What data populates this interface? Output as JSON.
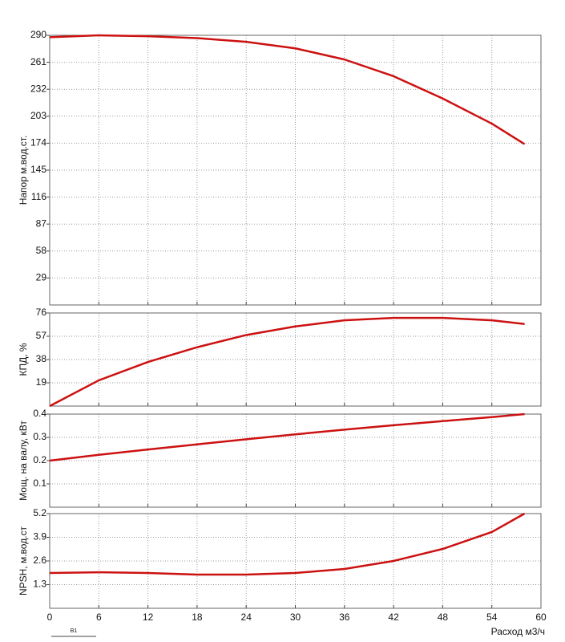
{
  "chart_data": [
    {
      "type": "line",
      "y_label": "Напор м.вод.ст.",
      "x": [
        0,
        6,
        12,
        18,
        24,
        30,
        36,
        42,
        48,
        54,
        58
      ],
      "series": [
        {
          "color": "#cc1111",
          "values": [
            288,
            290,
            289,
            287,
            283,
            276,
            264,
            246,
            222,
            195,
            173
          ]
        }
      ],
      "xlim": [
        0,
        60
      ],
      "xticks": [
        0,
        6,
        12,
        18,
        24,
        30,
        36,
        42,
        48,
        54,
        60
      ],
      "ylim": [
        0,
        290
      ],
      "yticks": [
        29,
        58,
        87,
        116,
        145,
        174,
        203,
        232,
        261,
        290
      ],
      "grid": true
    },
    {
      "type": "line",
      "y_label": "КПД, %",
      "x": [
        0,
        6,
        12,
        18,
        24,
        30,
        36,
        42,
        48,
        54,
        58
      ],
      "series": [
        {
          "color": "#cc1111",
          "values": [
            0,
            21,
            36,
            48,
            58,
            65,
            70,
            72,
            72,
            70,
            67
          ]
        }
      ],
      "xlim": [
        0,
        60
      ],
      "xticks": [
        0,
        6,
        12,
        18,
        24,
        30,
        36,
        42,
        48,
        54,
        60
      ],
      "ylim": [
        0,
        76
      ],
      "yticks": [
        19,
        38,
        57,
        76
      ],
      "grid": true
    },
    {
      "type": "line",
      "y_label": "Мощ. на валу, кВт",
      "x": [
        0,
        6,
        12,
        18,
        24,
        30,
        36,
        42,
        48,
        54,
        58
      ],
      "series": [
        {
          "color": "#cc1111",
          "values": [
            0.2,
            0.225,
            0.248,
            0.27,
            0.292,
            0.313,
            0.333,
            0.352,
            0.37,
            0.387,
            0.4
          ]
        }
      ],
      "xlim": [
        0,
        60
      ],
      "xticks": [
        0,
        6,
        12,
        18,
        24,
        30,
        36,
        42,
        48,
        54,
        60
      ],
      "ylim": [
        0,
        0.4
      ],
      "yticks": [
        0.1,
        0.2,
        0.3,
        0.4
      ],
      "grid": true
    },
    {
      "type": "line",
      "y_label": "NPSH, м.вод.ст",
      "x_label": "Расход м3/ч",
      "annotation": "В1",
      "x": [
        0,
        6,
        12,
        18,
        24,
        30,
        36,
        42,
        48,
        54,
        58
      ],
      "series": [
        {
          "color": "#cc1111",
          "values": [
            1.94,
            1.98,
            1.94,
            1.85,
            1.85,
            1.94,
            2.16,
            2.6,
            3.26,
            4.19,
            5.2
          ]
        }
      ],
      "xlim": [
        0,
        60
      ],
      "xticks": [
        0,
        6,
        12,
        18,
        24,
        30,
        36,
        42,
        48,
        54,
        60
      ],
      "ylim": [
        0,
        5.2
      ],
      "yticks": [
        1.3,
        2.6,
        3.9,
        5.2
      ],
      "grid": true
    }
  ]
}
